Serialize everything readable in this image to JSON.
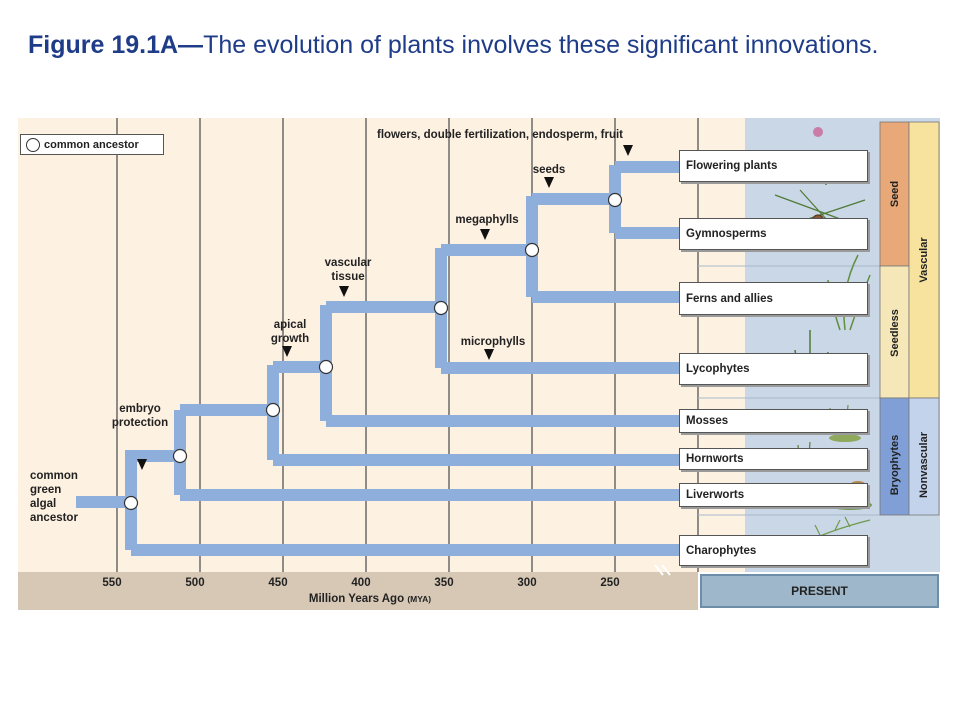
{
  "title": {
    "bold": "Figure 19.1A—",
    "rest": "The evolution of plants involves these significant innovations."
  },
  "legend": {
    "label": "common ancestor"
  },
  "ancestor_label": [
    "common",
    "green",
    "algal",
    "ancestor"
  ],
  "innovations": {
    "embryo": [
      "embryo",
      "protection"
    ],
    "apical": [
      "apical",
      "growth"
    ],
    "vascular": [
      "vascular",
      "tissue"
    ],
    "microphylls": "microphylls",
    "megaphylls": "megaphylls",
    "seeds": "seeds",
    "flowers": "flowers, double fertilization, endosperm, fruit"
  },
  "taxa": [
    "Flowering plants",
    "Gymnosperms",
    "Ferns and allies",
    "Lycophytes",
    "Mosses",
    "Hornworts",
    "Liverworts",
    "Charophytes"
  ],
  "groups": {
    "seed": "Seed",
    "seedless": "Seedless",
    "bryophytes": "Bryophytes",
    "vascular": "Vascular",
    "nonvascular": "Nonvascular"
  },
  "axis": {
    "ticks": [
      "550",
      "500",
      "450",
      "400",
      "350",
      "300",
      "250"
    ],
    "label": "Million Years Ago",
    "unit": "(MYA)",
    "present": "PRESENT"
  },
  "colors": {
    "branch": "#8eaedb",
    "timeline_bg": "#fdf1e2",
    "present_bg": "#c9d7e6",
    "seed_band": "#e8a878",
    "seedless_band": "#f5e7b8",
    "vascular_band": "#f7e29e",
    "bryophyte_band": "#7f9fd6",
    "nonvascular_band": "#c4d3ec",
    "axis_bar": "#d7c8b6"
  }
}
